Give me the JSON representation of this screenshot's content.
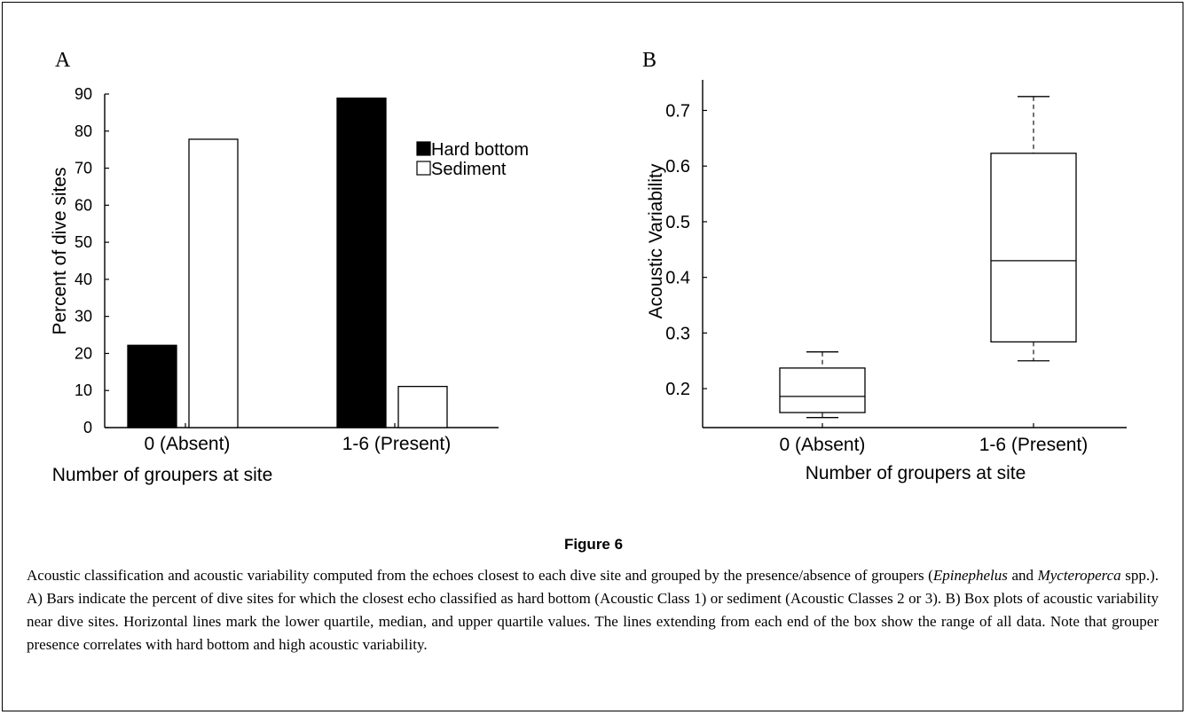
{
  "figure": {
    "label": "Figure 6",
    "caption_parts": [
      {
        "text": "Acoustic classification and acoustic variability computed from the echoes closest to each dive site and grouped by the presence/absence of groupers (",
        "italic": false
      },
      {
        "text": "Epinephelus",
        "italic": true
      },
      {
        "text": " and ",
        "italic": false
      },
      {
        "text": "Mycteroperca",
        "italic": true
      },
      {
        "text": " spp.). A) Bars indicate the percent of dive sites for which the closest echo classified as hard bottom (Acoustic Class 1) or sediment (Acoustic Classes 2 or 3). B) Box plots of acoustic variability near dive sites. Horizontal lines mark the lower quartile, median, and upper quartile values. The lines extending from each end of the box show the range of all data. Note that grouper presence correlates with hard bottom and high acoustic variability.",
        "italic": false
      }
    ]
  },
  "chart_data": [
    {
      "panel": "A",
      "type": "bar",
      "xlabel": "Number of groupers at site",
      "ylabel": "Percent of dive sites",
      "ylim": [
        0,
        90
      ],
      "yticks": [
        0,
        10,
        20,
        30,
        40,
        50,
        60,
        70,
        80,
        90
      ],
      "categories": [
        "0 (Absent)",
        "1-6 (Present)"
      ],
      "series": [
        {
          "name": "Hard bottom",
          "color": "#000000",
          "values": [
            22.2,
            88.9
          ]
        },
        {
          "name": "Sediment",
          "color": "#ffffff",
          "values": [
            77.8,
            11.1
          ]
        }
      ],
      "legend_position": "top-right"
    },
    {
      "panel": "B",
      "type": "box",
      "xlabel": "Number of groupers at site",
      "ylabel": "Acoustic Variability",
      "ylim": [
        0.13,
        0.755
      ],
      "yticks": [
        0.2,
        0.3,
        0.4,
        0.5,
        0.6,
        0.7
      ],
      "ytick_labels": [
        "0.2",
        "0.3",
        "0.4",
        "0.5",
        "0.6",
        "0.7"
      ],
      "categories": [
        "0 (Absent)",
        "1-6 (Present)"
      ],
      "boxes": [
        {
          "min": 0.148,
          "q1": 0.157,
          "median": 0.186,
          "q3": 0.237,
          "max": 0.266
        },
        {
          "min": 0.25,
          "q1": 0.284,
          "median": 0.43,
          "q3": 0.623,
          "max": 0.725
        }
      ]
    }
  ]
}
